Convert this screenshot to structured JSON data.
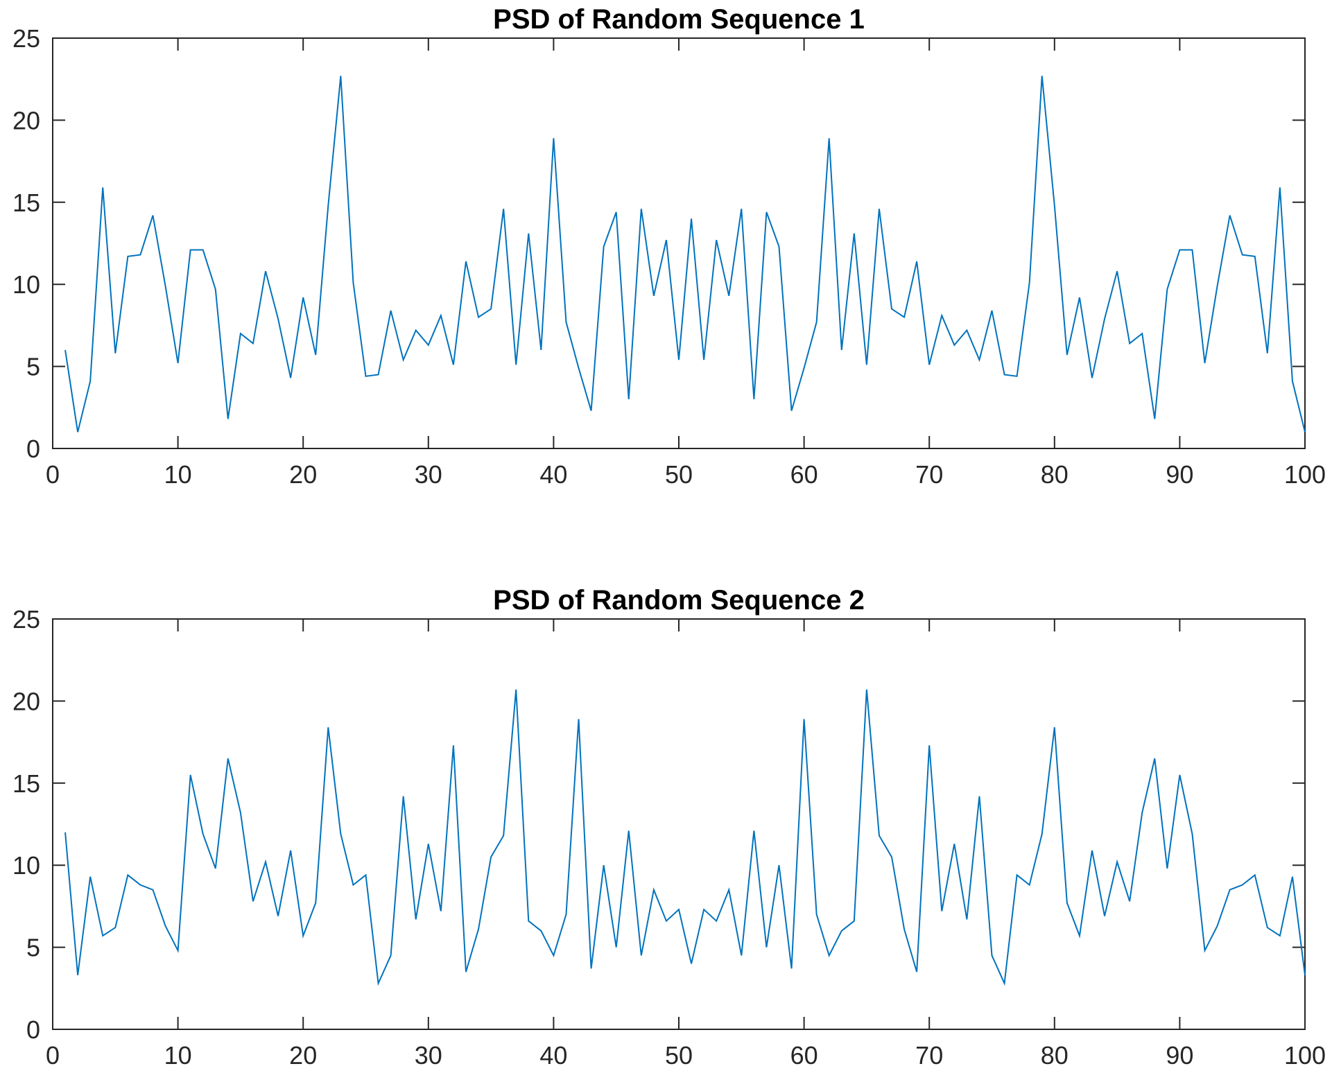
{
  "chart_data": [
    {
      "type": "line",
      "title": "PSD of Random Sequence 1",
      "xlabel": "",
      "ylabel": "",
      "xlim": [
        0,
        100
      ],
      "ylim": [
        0,
        25
      ],
      "xticks": [
        0,
        10,
        20,
        30,
        40,
        50,
        60,
        70,
        80,
        90,
        100
      ],
      "yticks": [
        0,
        5,
        10,
        15,
        20,
        25
      ],
      "grid": false,
      "color": "#0072BD",
      "x": [
        1,
        2,
        3,
        4,
        5,
        6,
        7,
        8,
        9,
        10,
        11,
        12,
        13,
        14,
        15,
        16,
        17,
        18,
        19,
        20,
        21,
        22,
        23,
        24,
        25,
        26,
        27,
        28,
        29,
        30,
        31,
        32,
        33,
        34,
        35,
        36,
        37,
        38,
        39,
        40,
        41,
        42,
        43,
        44,
        45,
        46,
        47,
        48,
        49,
        50,
        51,
        52,
        53,
        54,
        55,
        56,
        57,
        58,
        59,
        60,
        61,
        62,
        63,
        64,
        65,
        66,
        67,
        68,
        69,
        70,
        71,
        72,
        73,
        74,
        75,
        76,
        77,
        78,
        79,
        80,
        81,
        82,
        83,
        84,
        85,
        86,
        87,
        88,
        89,
        90,
        91,
        92,
        93,
        94,
        95,
        96,
        97,
        98,
        99,
        100
      ],
      "values": [
        6.0,
        1.0,
        4.1,
        15.9,
        5.8,
        11.7,
        11.8,
        14.2,
        9.9,
        5.2,
        12.1,
        12.1,
        9.7,
        1.8,
        7.0,
        6.4,
        10.8,
        7.9,
        4.3,
        9.2,
        5.7,
        14.8,
        22.7,
        10.1,
        4.4,
        4.5,
        8.4,
        5.4,
        7.2,
        6.3,
        8.1,
        5.1,
        11.4,
        8.0,
        8.5,
        14.6,
        5.1,
        13.1,
        6.0,
        18.9,
        7.7,
        4.9,
        2.3,
        12.3,
        14.4,
        3.0,
        14.6,
        9.3,
        12.7,
        5.4,
        14.0,
        5.4,
        12.7,
        9.3,
        14.6,
        3.0,
        14.4,
        12.3,
        2.3,
        4.9,
        7.7,
        18.9,
        6.0,
        13.1,
        5.1,
        14.6,
        8.5,
        8.0,
        11.4,
        5.1,
        8.1,
        6.3,
        7.2,
        5.4,
        8.4,
        4.5,
        4.4,
        10.1,
        22.7,
        14.8,
        5.7,
        9.2,
        4.3,
        7.9,
        10.8,
        6.4,
        7.0,
        1.8,
        9.7,
        12.1,
        12.1,
        5.2,
        9.9,
        14.2,
        11.8,
        11.7,
        5.8,
        15.9,
        4.1,
        1.0
      ]
    },
    {
      "type": "line",
      "title": "PSD of Random Sequence 2",
      "xlabel": "",
      "ylabel": "",
      "xlim": [
        0,
        100
      ],
      "ylim": [
        0,
        25
      ],
      "xticks": [
        0,
        10,
        20,
        30,
        40,
        50,
        60,
        70,
        80,
        90,
        100
      ],
      "yticks": [
        0,
        5,
        10,
        15,
        20,
        25
      ],
      "grid": false,
      "color": "#0072BD",
      "x": [
        1,
        2,
        3,
        4,
        5,
        6,
        7,
        8,
        9,
        10,
        11,
        12,
        13,
        14,
        15,
        16,
        17,
        18,
        19,
        20,
        21,
        22,
        23,
        24,
        25,
        26,
        27,
        28,
        29,
        30,
        31,
        32,
        33,
        34,
        35,
        36,
        37,
        38,
        39,
        40,
        41,
        42,
        43,
        44,
        45,
        46,
        47,
        48,
        49,
        50,
        51,
        52,
        53,
        54,
        55,
        56,
        57,
        58,
        59,
        60,
        61,
        62,
        63,
        64,
        65,
        66,
        67,
        68,
        69,
        70,
        71,
        72,
        73,
        74,
        75,
        76,
        77,
        78,
        79,
        80,
        81,
        82,
        83,
        84,
        85,
        86,
        87,
        88,
        89,
        90,
        91,
        92,
        93,
        94,
        95,
        96,
        97,
        98,
        99,
        100
      ],
      "values": [
        12.0,
        3.3,
        9.3,
        5.7,
        6.2,
        9.4,
        8.8,
        8.5,
        6.3,
        4.8,
        15.5,
        11.9,
        9.8,
        16.5,
        13.2,
        7.8,
        10.2,
        6.9,
        10.9,
        5.7,
        7.7,
        18.4,
        11.9,
        8.8,
        9.4,
        2.8,
        4.5,
        14.2,
        6.7,
        11.3,
        7.2,
        17.3,
        3.5,
        6.1,
        10.5,
        11.8,
        20.7,
        6.6,
        6.0,
        4.5,
        7.0,
        18.9,
        3.7,
        10.0,
        5.0,
        12.1,
        4.5,
        8.5,
        6.6,
        7.3,
        4.0,
        7.3,
        6.6,
        8.5,
        4.5,
        12.1,
        5.0,
        10.0,
        3.7,
        18.9,
        7.0,
        4.5,
        6.0,
        6.6,
        20.7,
        11.8,
        10.5,
        6.1,
        3.5,
        17.3,
        7.2,
        11.3,
        6.7,
        14.2,
        4.5,
        2.8,
        9.4,
        8.8,
        11.9,
        18.4,
        7.7,
        5.7,
        10.9,
        6.9,
        10.2,
        7.8,
        13.2,
        16.5,
        9.8,
        15.5,
        11.9,
        4.8,
        6.3,
        8.5,
        8.8,
        9.4,
        6.2,
        5.7,
        9.3,
        3.3
      ]
    }
  ]
}
